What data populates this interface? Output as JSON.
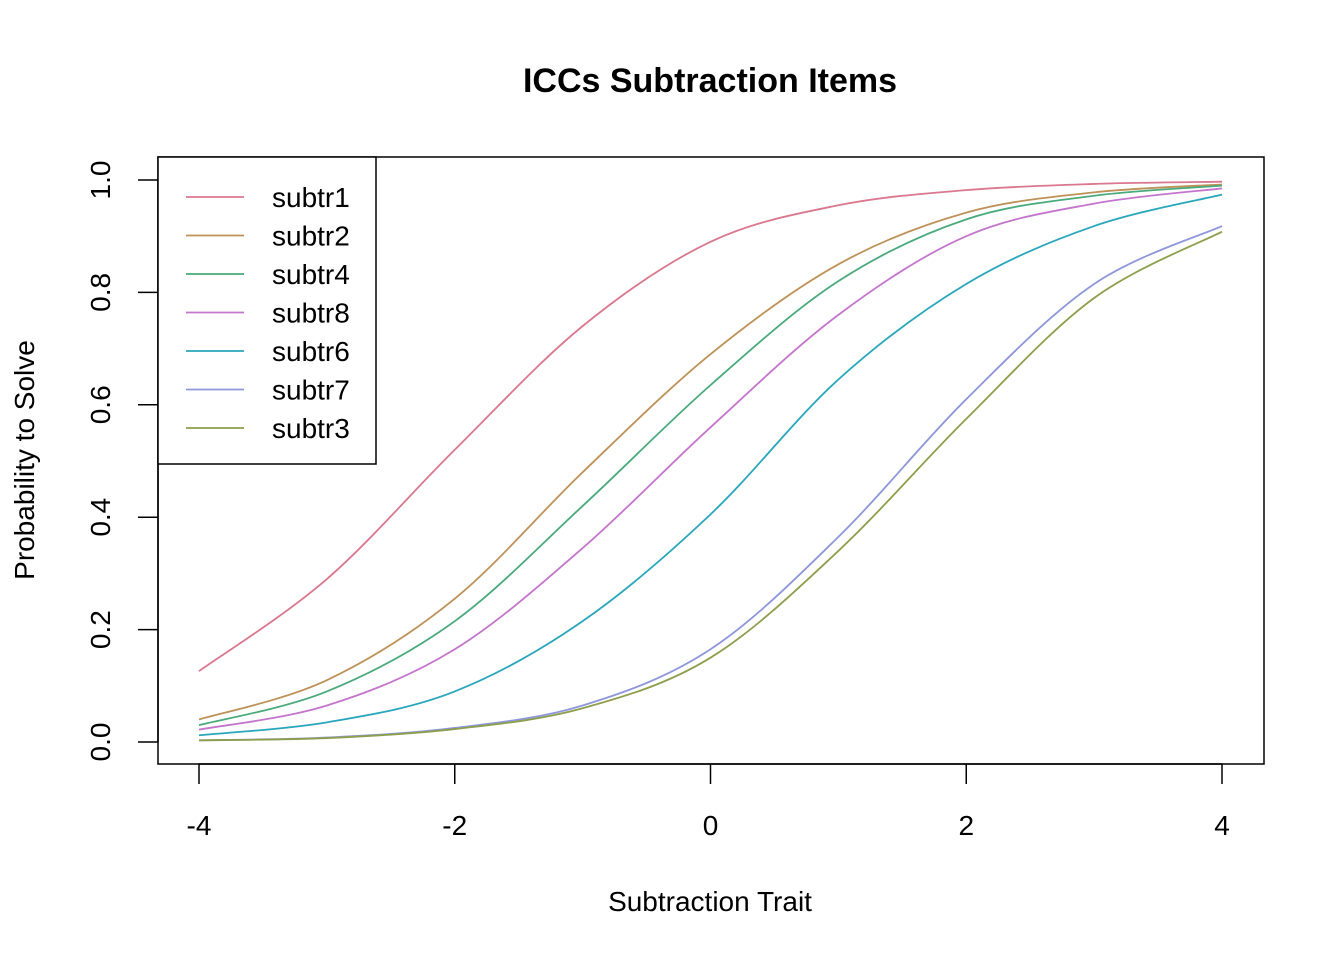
{
  "chart_data": {
    "type": "line",
    "title": "ICCs Subtraction Items",
    "xlabel": "Subtraction Trait",
    "ylabel": "Probability to Solve",
    "xlim": [
      -4,
      4
    ],
    "ylim": [
      0,
      1
    ],
    "x_ticks": [
      "-4",
      "-2",
      "0",
      "2",
      "4"
    ],
    "y_ticks": [
      "0.0",
      "0.2",
      "0.4",
      "0.6",
      "0.8",
      "1.0"
    ],
    "legend_position": "top-left",
    "grid": false,
    "x": [
      -4,
      -3,
      -2,
      -1,
      0,
      1,
      2,
      3,
      4
    ],
    "series": [
      {
        "name": "subtr1",
        "color": "#D9788F",
        "values": [
          0.126,
          0.29,
          0.52,
          0.74,
          0.89,
          0.955,
          0.982,
          0.993,
          0.997
        ]
      },
      {
        "name": "subtr2",
        "color": "#BE9158",
        "values": [
          0.04,
          0.11,
          0.255,
          0.48,
          0.69,
          0.85,
          0.942,
          0.978,
          0.992
        ]
      },
      {
        "name": "subtr4",
        "color": "#4AAA7C",
        "values": [
          0.03,
          0.09,
          0.215,
          0.42,
          0.635,
          0.82,
          0.93,
          0.972,
          0.99
        ]
      },
      {
        "name": "subtr8",
        "color": "#C475CC",
        "values": [
          0.022,
          0.065,
          0.165,
          0.345,
          0.56,
          0.76,
          0.9,
          0.958,
          0.985
        ]
      },
      {
        "name": "subtr6",
        "color": "#29A6BB",
        "values": [
          0.012,
          0.035,
          0.09,
          0.215,
          0.405,
          0.645,
          0.815,
          0.918,
          0.974
        ]
      },
      {
        "name": "subtr7",
        "color": "#8E97DA",
        "values": [
          0.003,
          0.008,
          0.025,
          0.065,
          0.165,
          0.365,
          0.61,
          0.815,
          0.918
        ]
      },
      {
        "name": "subtr3",
        "color": "#8D9E4C",
        "values": [
          0.003,
          0.007,
          0.023,
          0.06,
          0.15,
          0.34,
          0.575,
          0.79,
          0.908
        ]
      }
    ]
  }
}
